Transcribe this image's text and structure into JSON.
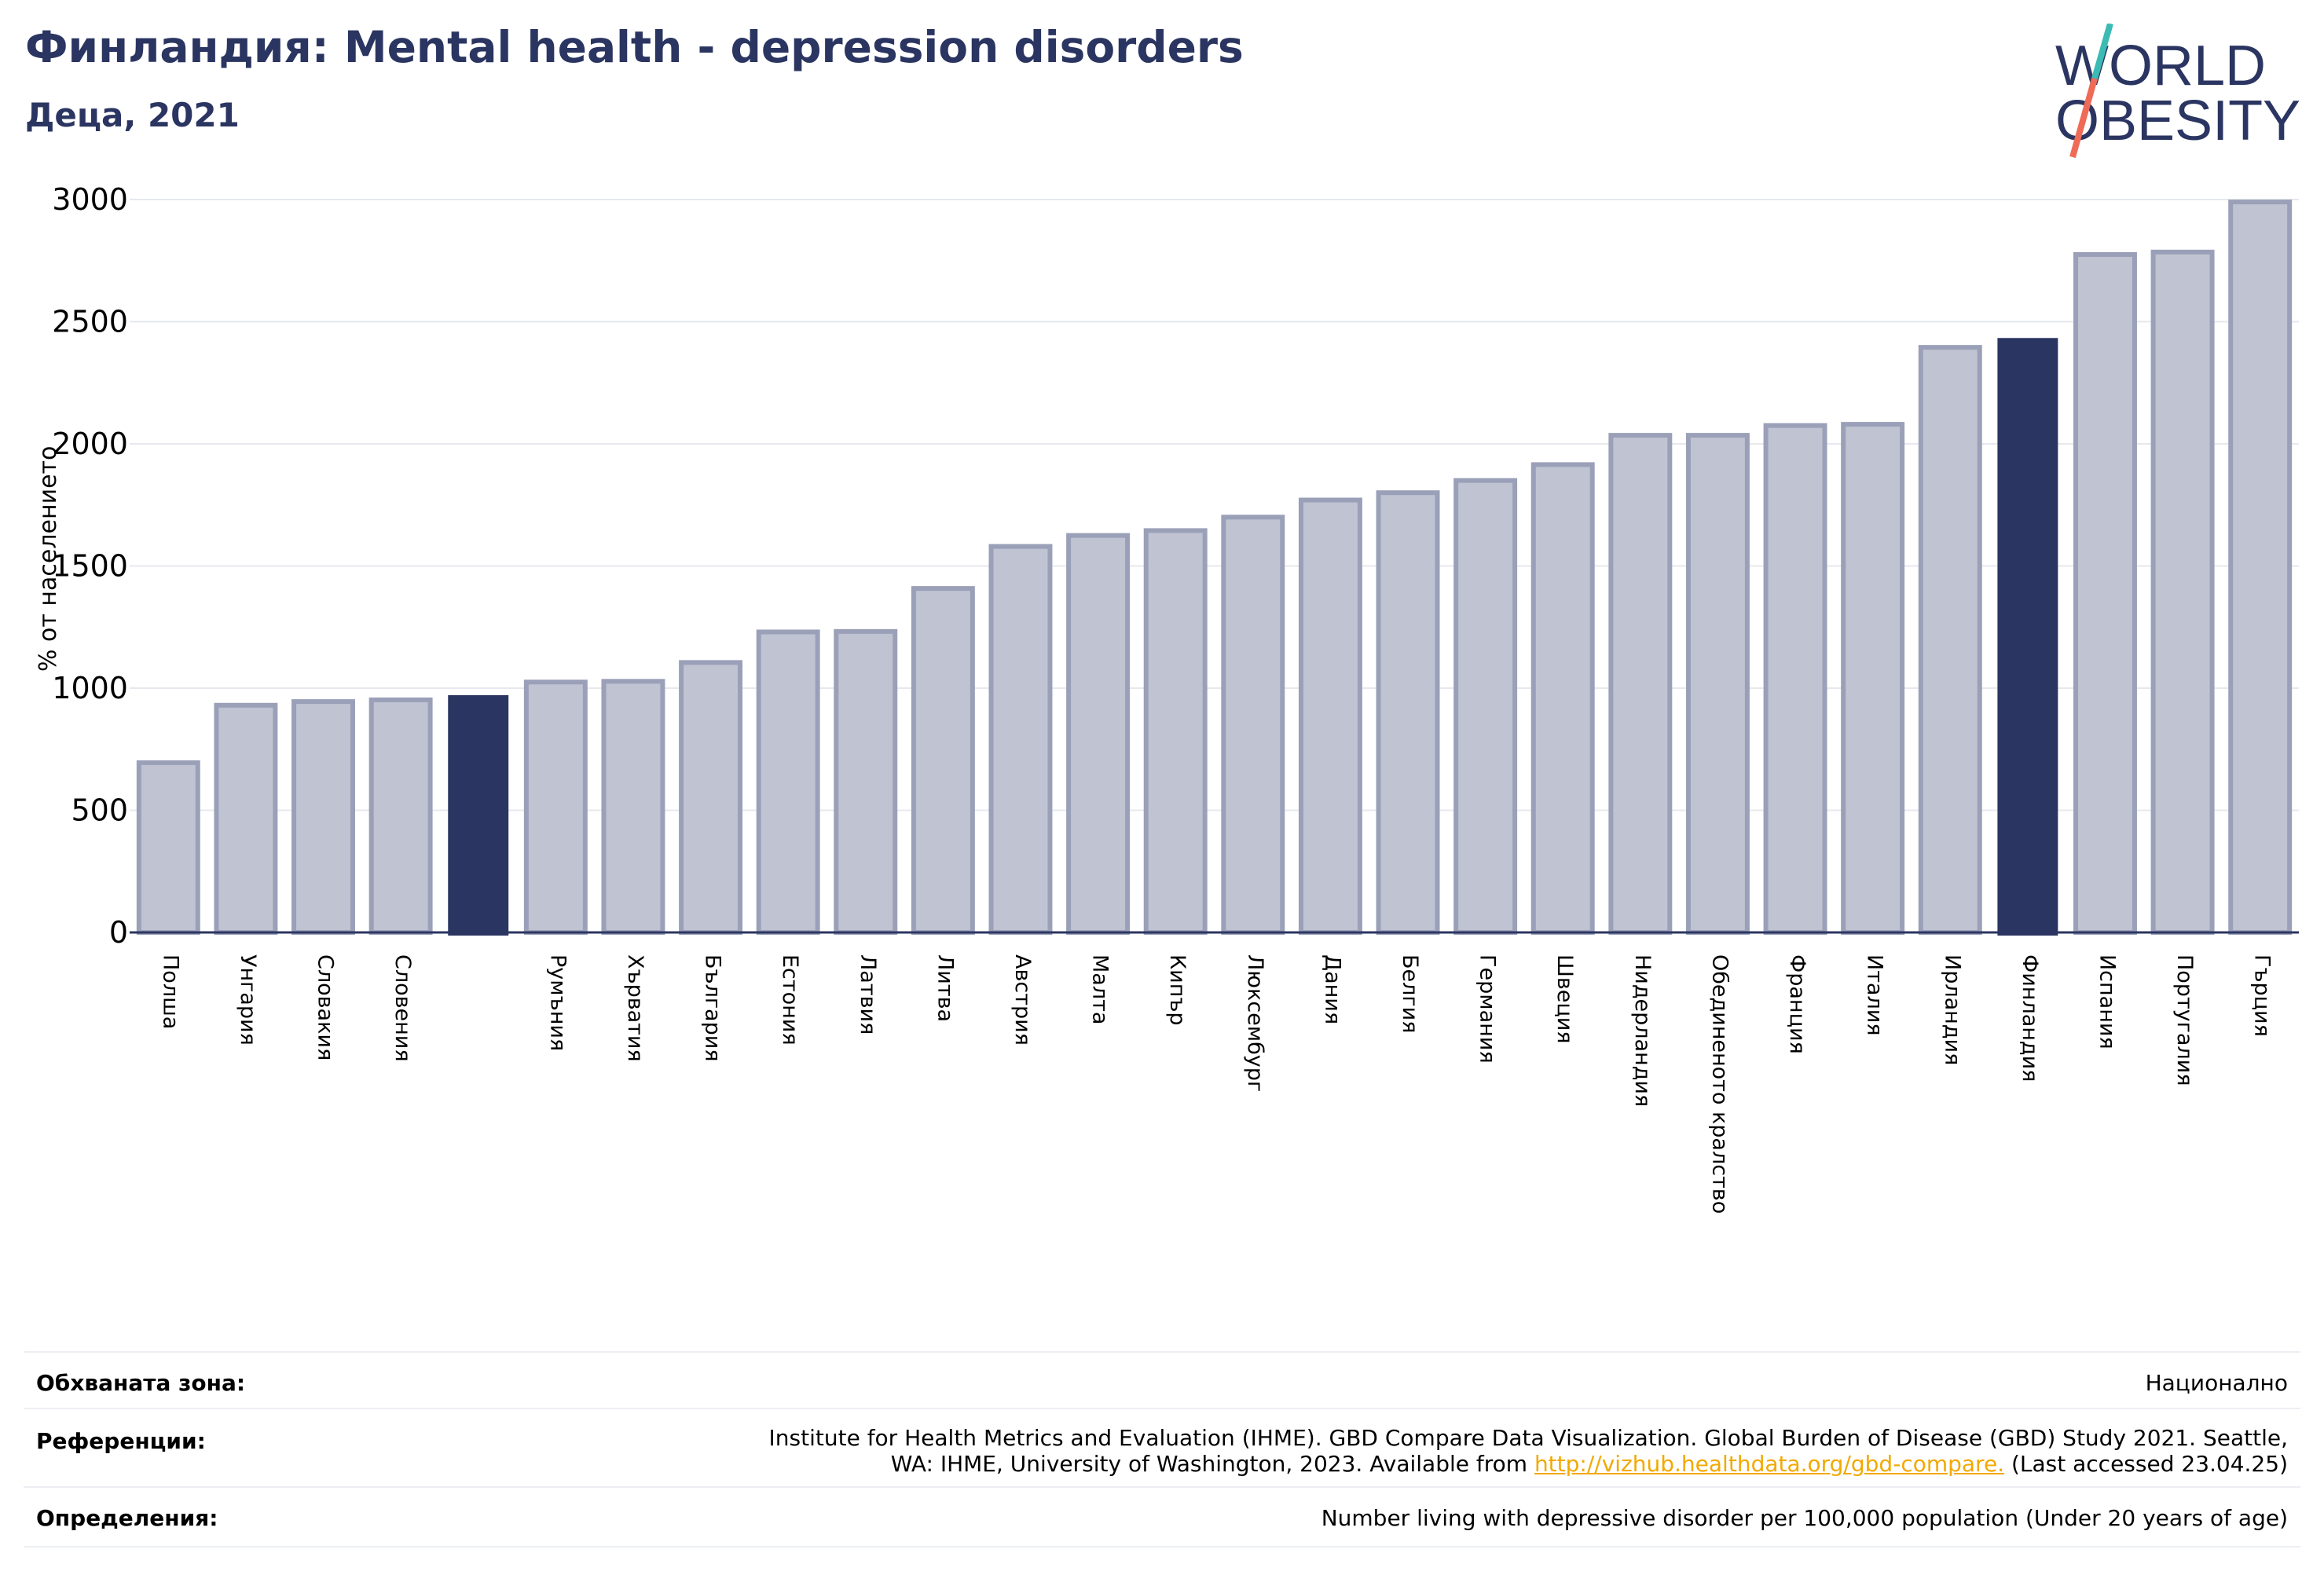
{
  "header": {
    "title": "Финландия: Mental health - depression disorders",
    "subtitle": "Деца, 2021"
  },
  "logo": {
    "line1": "WORLD",
    "line2": "OBESITY"
  },
  "colors": {
    "bar": "#c0c3d1",
    "bar_edge": "#9aa0b8",
    "highlight": "#2b3561",
    "title": "#2b3561",
    "link": "#f2a900"
  },
  "chart_data": {
    "type": "bar",
    "ylabel": "% от населението",
    "ylim": [
      0,
      3000
    ],
    "yticks": [
      0,
      500,
      1000,
      1500,
      2000,
      2500,
      3000
    ],
    "grid": true,
    "categories": [
      "Полша",
      "Унгария",
      "Словакия",
      "Словения",
      "",
      "Румъния",
      "Хърватия",
      "България",
      "Естония",
      "Латвия",
      "Литва",
      "Австрия",
      "Малта",
      "Кипър",
      "Люксембург",
      "Дания",
      "Белгия",
      "Германия",
      "Швеция",
      "Нидерландия",
      "Обединеното кралство",
      "Франция",
      "Италия",
      "Ирландия",
      "Финландия",
      "Испания",
      "Португалия",
      "Гърция"
    ],
    "values": [
      695,
      930,
      945,
      952,
      968,
      1025,
      1028,
      1105,
      1230,
      1232,
      1408,
      1580,
      1625,
      1645,
      1700,
      1770,
      1800,
      1850,
      1915,
      2035,
      2035,
      2075,
      2080,
      2395,
      2430,
      2775,
      2785,
      2990
    ],
    "highlighted": [
      4,
      24
    ]
  },
  "info": {
    "coverage_label": "Обхваната зона:",
    "coverage_value": "Национално",
    "references_label": "Референции:",
    "references_line1": "Institute for Health Metrics and Evaluation (IHME). GBD Compare Data Visualization. Global Burden of Disease (GBD) Study 2021. Seattle,",
    "references_line2_pre": "WA: IHME, University of Washington, 2023. Available from ",
    "references_link": "http://vizhub.healthdata.org/gbd-compare.",
    "references_line2_post": " (Last accessed 23.04.25)",
    "definitions_label": "Определения:",
    "definitions_value": "Number living with depressive disorder per 100,000 population (Under 20 years of age)"
  }
}
